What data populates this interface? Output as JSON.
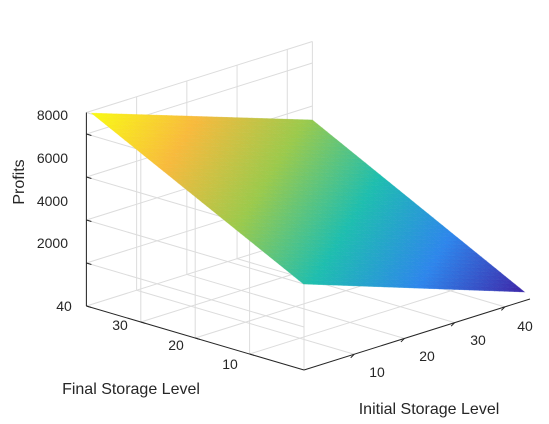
{
  "chart_data": {
    "type": "surface",
    "xlabel": "Initial Storage Level",
    "ylabel": "Final Storage Level",
    "zlabel": "Profits",
    "xlim": [
      0,
      45
    ],
    "ylim": [
      0,
      40
    ],
    "zlim": [
      0,
      9000
    ],
    "xticks": [
      10,
      20,
      30,
      40
    ],
    "yticks": [
      10,
      20,
      30,
      40
    ],
    "zticks": [
      2000,
      4000,
      6000,
      8000
    ],
    "x_range": [
      1,
      45
    ],
    "y_range": [
      1,
      40
    ],
    "corner_values": [
      {
        "x": 45,
        "y": 1,
        "z": 250
      },
      {
        "x": 45,
        "y": 40,
        "z": 5350
      },
      {
        "x": 1,
        "y": 1,
        "z": 3850
      },
      {
        "x": 1,
        "y": 40,
        "z": 8900
      }
    ],
    "colormap": [
      "#3e26a8",
      "#2e86ec",
      "#1ebeaf",
      "#9bca4c",
      "#f8ba3d",
      "#f9fb15"
    ],
    "grid": true
  }
}
